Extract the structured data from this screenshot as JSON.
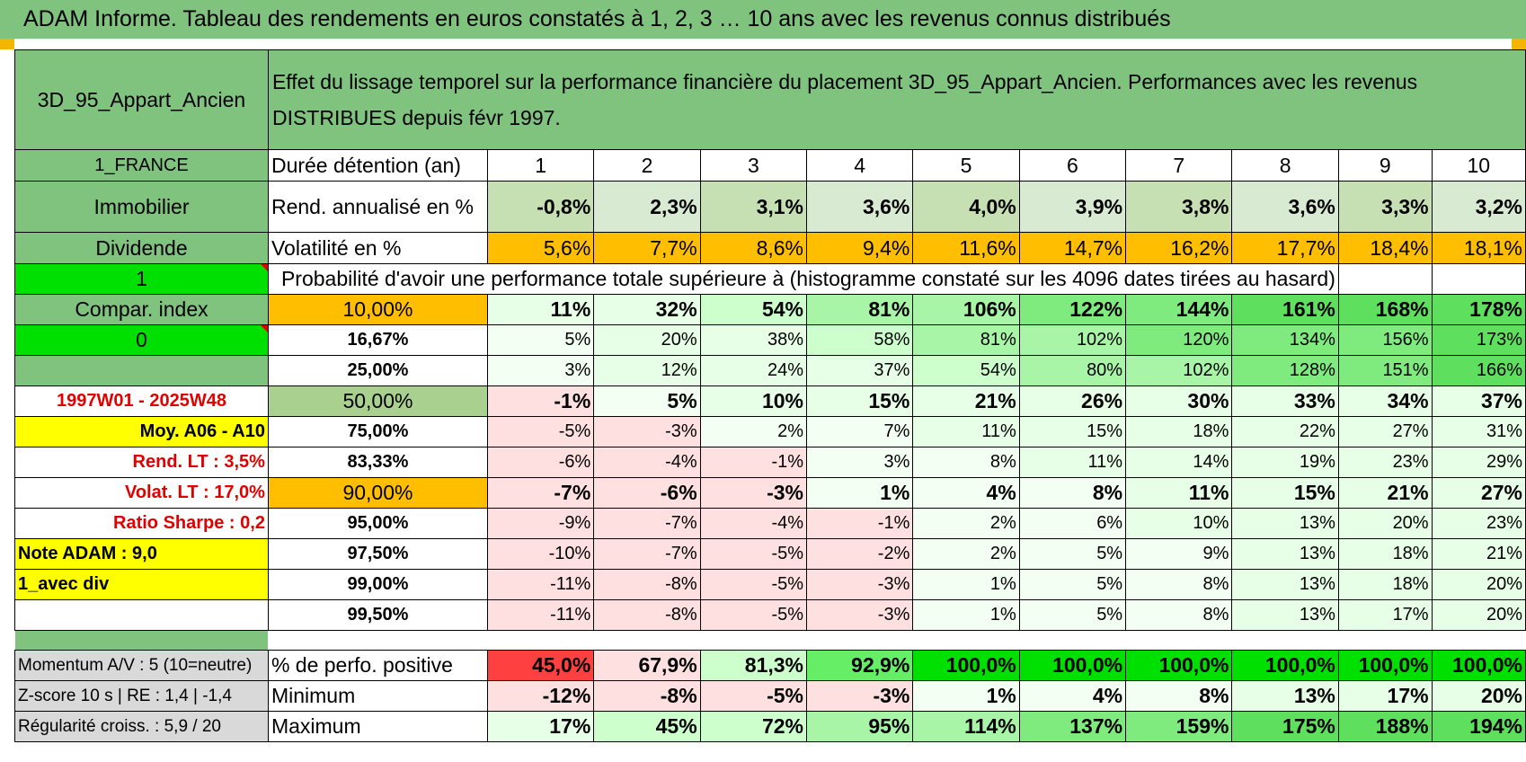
{
  "title": "ADAM Informe. Tableau des rendements en euros constatés à 1, 2, 3 … 10 ans avec les revenus connus distribués",
  "header": {
    "asset": "3D_95_Appart_Ancien",
    "description": "Effet du lissage temporel sur la performance financière du placement 3D_95_Appart_Ancien. Performances avec les revenus DISTRIBUES depuis févr 1997."
  },
  "left_labels": {
    "country": "1_FRANCE",
    "category": "Immobilier",
    "income": "Dividende",
    "one": "1",
    "compar": "Compar. index",
    "zero": "0",
    "blank": "",
    "period": "1997W01 - 2025W48",
    "moy": "Moy. A06 - A10",
    "rend_lt": "Rend. LT :    3,5%",
    "volat_lt": "Volat. LT :    17,0%",
    "sharpe": "Ratio Sharpe :     0,2",
    "note": "Note ADAM : 9,0",
    "avec_div": "1_avec div",
    "momentum": "Momentum A/V : 5 (10=neutre)",
    "zscore": "Z-score 10 s | RE : 1,4 | -1,4",
    "regularite": "Régularité croiss. : 5,9 / 20"
  },
  "row_labels": {
    "duree": "Durée détention (an)",
    "rend": "Rend. annualisé en %",
    "volat": "Volatilité en %",
    "proba": "Probabilité d'avoir une performance totale supérieure à (histogramme constaté sur les 4096 dates tirées au hasard)",
    "positive": "% de perfo. positive",
    "minimum": "Minimum",
    "maximum": "Maximum"
  },
  "years": [
    "1",
    "2",
    "3",
    "4",
    "5",
    "6",
    "7",
    "8",
    "9",
    "10"
  ],
  "rend": [
    "-0,8%",
    "2,3%",
    "3,1%",
    "3,6%",
    "4,0%",
    "3,9%",
    "3,8%",
    "3,6%",
    "3,3%",
    "3,2%"
  ],
  "volat": [
    "5,6%",
    "7,7%",
    "8,6%",
    "9,4%",
    "11,6%",
    "14,7%",
    "16,2%",
    "17,7%",
    "18,4%",
    "18,1%"
  ],
  "percentiles": [
    {
      "label": "10,00%",
      "values": [
        "11%",
        "32%",
        "54%",
        "81%",
        "106%",
        "122%",
        "144%",
        "161%",
        "168%",
        "178%"
      ]
    },
    {
      "label": "16,67%",
      "values": [
        "5%",
        "20%",
        "38%",
        "58%",
        "81%",
        "102%",
        "120%",
        "134%",
        "156%",
        "173%"
      ]
    },
    {
      "label": "25,00%",
      "values": [
        "3%",
        "12%",
        "24%",
        "37%",
        "54%",
        "80%",
        "102%",
        "128%",
        "151%",
        "166%"
      ]
    },
    {
      "label": "50,00%",
      "values": [
        "-1%",
        "5%",
        "10%",
        "15%",
        "21%",
        "26%",
        "30%",
        "33%",
        "34%",
        "37%"
      ]
    },
    {
      "label": "75,00%",
      "values": [
        "-5%",
        "-3%",
        "2%",
        "7%",
        "11%",
        "15%",
        "18%",
        "22%",
        "27%",
        "31%"
      ]
    },
    {
      "label": "83,33%",
      "values": [
        "-6%",
        "-4%",
        "-1%",
        "3%",
        "8%",
        "11%",
        "14%",
        "19%",
        "23%",
        "29%"
      ]
    },
    {
      "label": "90,00%",
      "values": [
        "-7%",
        "-6%",
        "-3%",
        "1%",
        "4%",
        "8%",
        "11%",
        "15%",
        "21%",
        "27%"
      ]
    },
    {
      "label": "95,00%",
      "values": [
        "-9%",
        "-7%",
        "-4%",
        "-1%",
        "2%",
        "6%",
        "10%",
        "13%",
        "20%",
        "23%"
      ]
    },
    {
      "label": "97,50%",
      "values": [
        "-10%",
        "-7%",
        "-5%",
        "-2%",
        "2%",
        "5%",
        "9%",
        "13%",
        "18%",
        "21%"
      ]
    },
    {
      "label": "99,00%",
      "values": [
        "-11%",
        "-8%",
        "-5%",
        "-3%",
        "1%",
        "5%",
        "8%",
        "13%",
        "18%",
        "20%"
      ]
    },
    {
      "label": "99,50%",
      "values": [
        "-11%",
        "-8%",
        "-5%",
        "-3%",
        "1%",
        "5%",
        "8%",
        "13%",
        "17%",
        "20%"
      ]
    }
  ],
  "positive": [
    "45,0%",
    "67,9%",
    "81,3%",
    "92,9%",
    "100,0%",
    "100,0%",
    "100,0%",
    "100,0%",
    "100,0%",
    "100,0%"
  ],
  "minimum": [
    "-12%",
    "-8%",
    "-5%",
    "-3%",
    "1%",
    "4%",
    "8%",
    "13%",
    "17%",
    "20%"
  ],
  "maximum": [
    "17%",
    "45%",
    "72%",
    "95%",
    "114%",
    "137%",
    "159%",
    "175%",
    "188%",
    "194%"
  ],
  "colors": {
    "banner_green": "#7fc37f",
    "bright_green": "#00e000",
    "yellow": "#ffff00",
    "orange": "#ffbf00",
    "red_text": "#e00000",
    "negative_pink": "#ffd6d6",
    "positive_green": "#90ee90",
    "min_positive_red": "#ff4040"
  }
}
